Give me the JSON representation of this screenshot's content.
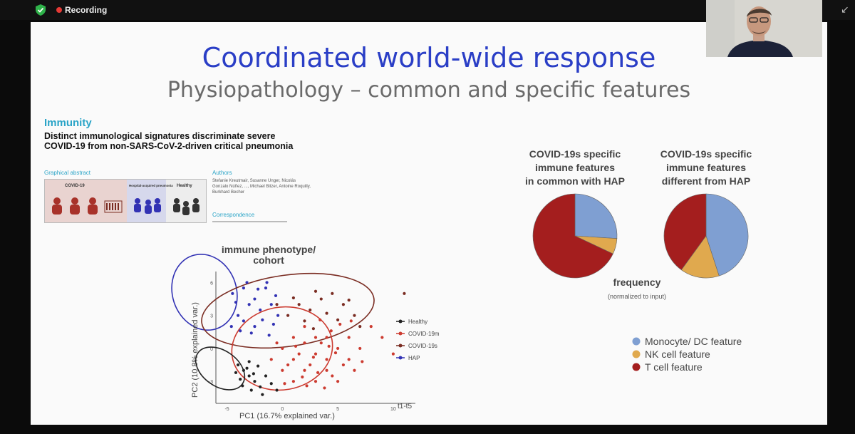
{
  "topbar": {
    "recording_label": "Recording"
  },
  "slide": {
    "title": "Coordinated world-wide response",
    "subtitle": "Physiopathology – common and specific features"
  },
  "paper": {
    "journal": "Immunity",
    "title": "Distinct immunological signatures discriminate severe COVID-19 from non-SARS-CoV-2-driven critical pneumonia",
    "graphical_abstract_label": "Graphical abstract",
    "authors_label": "Authors",
    "authors": "Stefanie Kreutmair, Susanne Unger, Nicolás Gonzalo Núñez, ..., Michael Bitzer, Antoine Roquilly, Burkhard Becher",
    "correspondence_label": "Correspondence",
    "abstract_panels": [
      "COVID-19",
      "Hospital-acquired pneumonia",
      "Healthy"
    ]
  },
  "colors": {
    "healthy": "#222222",
    "covid19m": "#cc3b30",
    "covid19s": "#7a2c22",
    "hap": "#3232b4",
    "monocyte": "#7f9fd2",
    "nk": "#e0a94e",
    "tcell": "#a41e1e",
    "title_blue": "#2a3ec6"
  },
  "chart_data": [
    {
      "type": "scatter",
      "title": "immune phenotype/ cohort",
      "xlabel": "PC1 (16.7% explained var.)",
      "ylabel": "PC2 (10.8% explained var.)",
      "annotation": "t1-t5",
      "xlim": [
        -6,
        12
      ],
      "ylim": [
        -5,
        7
      ],
      "xticks": [
        -5,
        0,
        5,
        10
      ],
      "yticks": [
        -3,
        0,
        3,
        6
      ],
      "legend_position": "right",
      "series": [
        {
          "name": "Healthy",
          "points": [
            [
              -4.0,
              -1.5
            ],
            [
              -3.5,
              -2.0
            ],
            [
              -3.0,
              -2.5
            ],
            [
              -3.8,
              -2.8
            ],
            [
              -2.5,
              -3.0
            ],
            [
              -2.0,
              -3.5
            ],
            [
              -3.2,
              -1.8
            ],
            [
              -1.5,
              -2.5
            ],
            [
              -2.8,
              -3.8
            ],
            [
              -4.2,
              -2.2
            ],
            [
              -1.0,
              -3.2
            ],
            [
              -2.2,
              -1.6
            ],
            [
              -3.6,
              -3.4
            ],
            [
              -2.6,
              -2.3
            ],
            [
              -1.8,
              -4.2
            ],
            [
              -0.5,
              -3.8
            ],
            [
              -3.0,
              -1.2
            ]
          ]
        },
        {
          "name": "COVID-19m",
          "points": [
            [
              0,
              0
            ],
            [
              1,
              -1
            ],
            [
              2,
              0.5
            ],
            [
              3,
              -0.5
            ],
            [
              4,
              1
            ],
            [
              5,
              0
            ],
            [
              2,
              -2
            ],
            [
              3,
              -3
            ],
            [
              4,
              -2
            ],
            [
              1,
              1
            ],
            [
              0,
              -2
            ],
            [
              6,
              -1
            ],
            [
              5,
              -3
            ],
            [
              2,
              2
            ],
            [
              3,
              1
            ],
            [
              4,
              -1
            ],
            [
              1,
              -3
            ],
            [
              6,
              1
            ],
            [
              7,
              0
            ],
            [
              -1,
              -1
            ],
            [
              2.5,
              -1.5
            ],
            [
              3.5,
              0.5
            ],
            [
              4.5,
              -2.5
            ],
            [
              1.5,
              -0.5
            ],
            [
              0.5,
              -1.5
            ],
            [
              5.5,
              -1.5
            ],
            [
              3.2,
              -2.2
            ],
            [
              2.2,
              -3.4
            ],
            [
              4.2,
              0.2
            ],
            [
              6.5,
              -2
            ],
            [
              8,
              2
            ],
            [
              9,
              1
            ],
            [
              10,
              -0.5
            ],
            [
              6.2,
              2.5
            ],
            [
              1.2,
              0.2
            ],
            [
              3.8,
              -3.6
            ],
            [
              0.2,
              -3.2
            ],
            [
              5.2,
              2.2
            ],
            [
              2.8,
              -0.8
            ],
            [
              4.8,
              -0.4
            ],
            [
              -0.5,
              0.5
            ],
            [
              3.4,
              2.6
            ],
            [
              7.2,
              -1.2
            ],
            [
              1.8,
              -2.6
            ],
            [
              4.4,
              1.6
            ]
          ]
        },
        {
          "name": "COVID-19s",
          "points": [
            [
              0.5,
              3
            ],
            [
              1.5,
              4
            ],
            [
              2.5,
              3.5
            ],
            [
              3.5,
              4.5
            ],
            [
              4.5,
              5
            ],
            [
              5.5,
              4
            ],
            [
              6.5,
              3
            ],
            [
              2,
              2.5
            ],
            [
              3,
              5.2
            ],
            [
              1,
              4.6
            ],
            [
              -0.5,
              4
            ],
            [
              4,
              3.2
            ],
            [
              5,
              2.6
            ],
            [
              6,
              4.4
            ],
            [
              7,
              2
            ],
            [
              2.8,
              1.8
            ],
            [
              11,
              5
            ]
          ]
        },
        {
          "name": "HAP",
          "points": [
            [
              -4.5,
              5
            ],
            [
              -3.5,
              5.5
            ],
            [
              -2.5,
              4.5
            ],
            [
              -1.5,
              5.5
            ],
            [
              -3,
              4
            ],
            [
              -4,
              3
            ],
            [
              -2,
              3.5
            ],
            [
              -1,
              4
            ],
            [
              -3.5,
              2.5
            ],
            [
              -2.5,
              2
            ],
            [
              -4.2,
              4.2
            ],
            [
              -1.8,
              2.6
            ],
            [
              -0.8,
              2.2
            ],
            [
              -3.2,
              6
            ],
            [
              -1.4,
              6
            ],
            [
              -4.6,
              2
            ],
            [
              -2.8,
              1.4
            ],
            [
              -0.4,
              3
            ],
            [
              -1.2,
              1.2
            ],
            [
              -3.8,
              1.6
            ],
            [
              -2.2,
              5.4
            ],
            [
              -0.6,
              4.8
            ]
          ]
        }
      ]
    },
    {
      "type": "pie",
      "title": "COVID-19s specific immune features in common with HAP",
      "categories": [
        "Monocyte/ DC feature",
        "NK cell feature",
        "T cell feature"
      ],
      "values": [
        0.26,
        0.06,
        0.68
      ]
    },
    {
      "type": "pie",
      "title": "COVID-19s specific immune features different from HAP",
      "categories": [
        "Monocyte/ DC feature",
        "NK cell feature",
        "T cell feature"
      ],
      "values": [
        0.45,
        0.15,
        0.4
      ],
      "xlabel": "frequency",
      "xlabel_sub": "(normalized to input)"
    }
  ]
}
